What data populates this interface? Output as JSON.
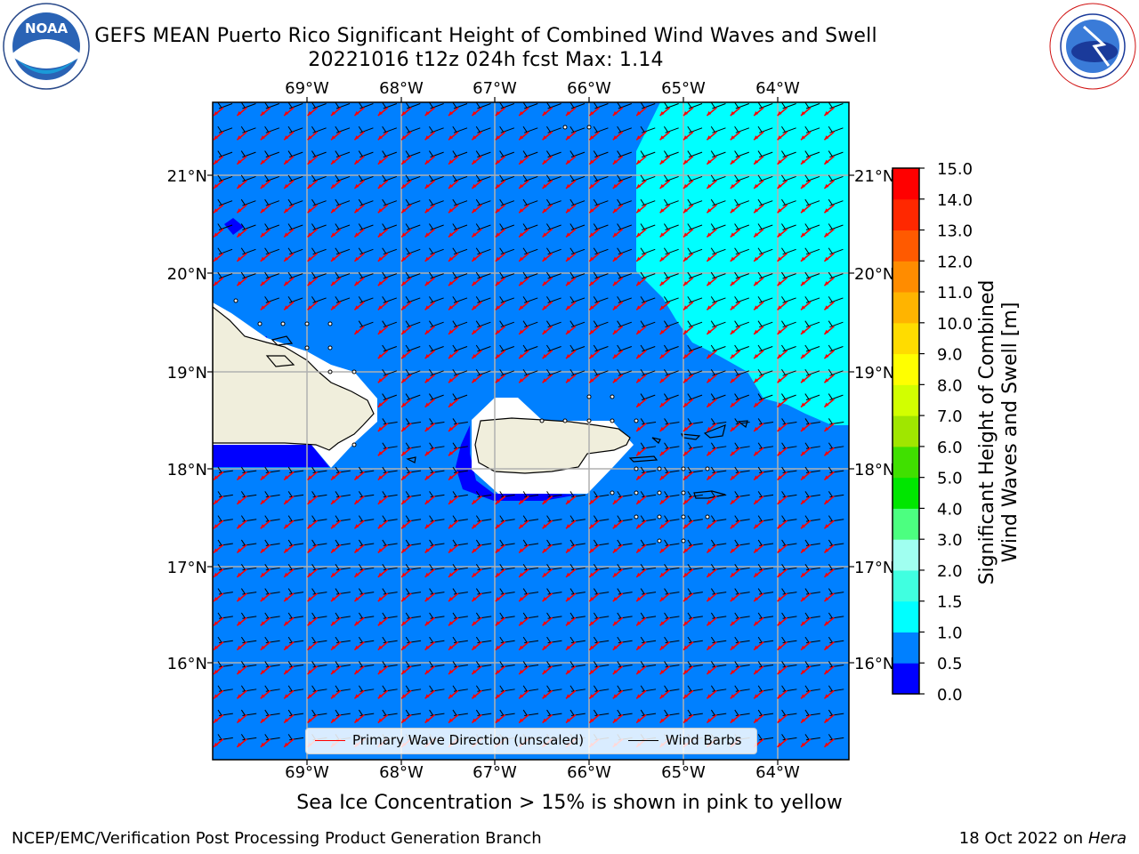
{
  "title": {
    "line1": "GEFS MEAN Puerto Rico Significant Height of Combined Wind Waves and Swell",
    "line2": "20221016 t12z 024h fcst   Max: 1.14"
  },
  "logos": {
    "left": {
      "name": "NOAA",
      "ring_text": "NATIONAL OCEANIC AND ATMOSPHERIC ADMINISTRATION · U.S. DEPARTMENT OF COMMERCE"
    },
    "right": {
      "ring_text": "NATIONAL WEATHER SERVICE"
    }
  },
  "map": {
    "lon_ticks": [
      "69°W",
      "68°W",
      "67°W",
      "66°W",
      "65°W",
      "64°W"
    ],
    "lat_ticks": [
      "21°N",
      "20°N",
      "19°N",
      "18°N",
      "17°N",
      "16°N"
    ],
    "legend": {
      "wave": "Primary Wave Direction (unscaled)",
      "wind": "Wind Barbs"
    },
    "colors": {
      "ocean_0_5_to_1_0": "#0080ff",
      "ocean_1_0_to_1_5": "#00ffff",
      "ocean_0_0_to_0_5": "#0000ff",
      "land": "#f0eedc",
      "wave_arrow": "#ff0000",
      "wind_barb": "#000000",
      "grid": "#b0b0b0"
    }
  },
  "colorbar": {
    "title_line1": "Significant Height of Combined",
    "title_line2": "Wind Waves and Swell [m]",
    "ticks": [
      "0.0",
      "0.5",
      "1.0",
      "1.5",
      "2.0",
      "3.0",
      "4.0",
      "5.0",
      "6.0",
      "7.0",
      "8.0",
      "9.0",
      "10.0",
      "11.0",
      "12.0",
      "13.0",
      "14.0",
      "15.0"
    ],
    "colors": [
      "#0000ff",
      "#0080ff",
      "#00ffff",
      "#40ffe0",
      "#a0fff0",
      "#4cff80",
      "#00e600",
      "#40e000",
      "#a0e600",
      "#d2ff00",
      "#ffff00",
      "#ffdc00",
      "#ffb400",
      "#ff8c00",
      "#ff5a00",
      "#ff2800",
      "#ff0000"
    ]
  },
  "notes": {
    "sea_ice": "Sea Ice Concentration > 15% is shown in pink to yellow",
    "footer_left": "NCEP/EMC/Verification Post Processing Product Generation Branch",
    "footer_right_prefix": "18 Oct 2022 on ",
    "footer_right_host": "Hera"
  }
}
